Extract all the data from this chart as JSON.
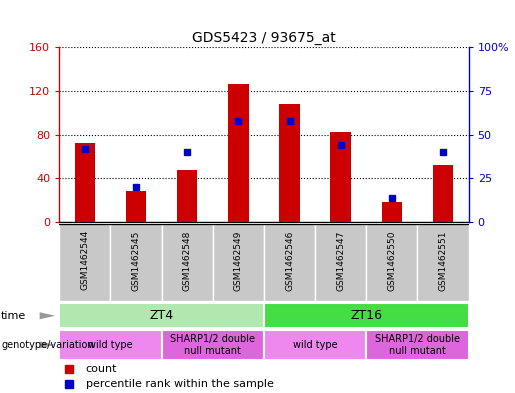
{
  "title": "GDS5423 / 93675_at",
  "samples": [
    "GSM1462544",
    "GSM1462545",
    "GSM1462548",
    "GSM1462549",
    "GSM1462546",
    "GSM1462547",
    "GSM1462550",
    "GSM1462551"
  ],
  "counts": [
    72,
    28,
    48,
    126,
    108,
    82,
    18,
    52
  ],
  "percentile_ranks": [
    42,
    20,
    40,
    58,
    58,
    44,
    14,
    40
  ],
  "left_ylim": [
    0,
    160
  ],
  "right_ylim": [
    0,
    100
  ],
  "left_yticks": [
    0,
    40,
    80,
    120,
    160
  ],
  "right_yticks": [
    0,
    25,
    50,
    75,
    100
  ],
  "right_yticklabels": [
    "0",
    "25",
    "50",
    "75",
    "100%"
  ],
  "bar_color": "#cc0000",
  "marker_color": "#0000cc",
  "bg_color": "#c8c8c8",
  "time_groups": [
    {
      "label": "ZT4",
      "start": 0,
      "end": 4,
      "color": "#b0e8b0"
    },
    {
      "label": "ZT16",
      "start": 4,
      "end": 8,
      "color": "#44dd44"
    }
  ],
  "genotype_groups": [
    {
      "label": "wild type",
      "start": 0,
      "end": 2,
      "color": "#ee88ee"
    },
    {
      "label": "SHARP1/2 double\nnull mutant",
      "start": 2,
      "end": 4,
      "color": "#dd66dd"
    },
    {
      "label": "wild type",
      "start": 4,
      "end": 6,
      "color": "#ee88ee"
    },
    {
      "label": "SHARP1/2 double\nnull mutant",
      "start": 6,
      "end": 8,
      "color": "#dd66dd"
    }
  ],
  "bar_width": 0.4,
  "figsize": [
    5.15,
    3.93
  ],
  "dpi": 100
}
